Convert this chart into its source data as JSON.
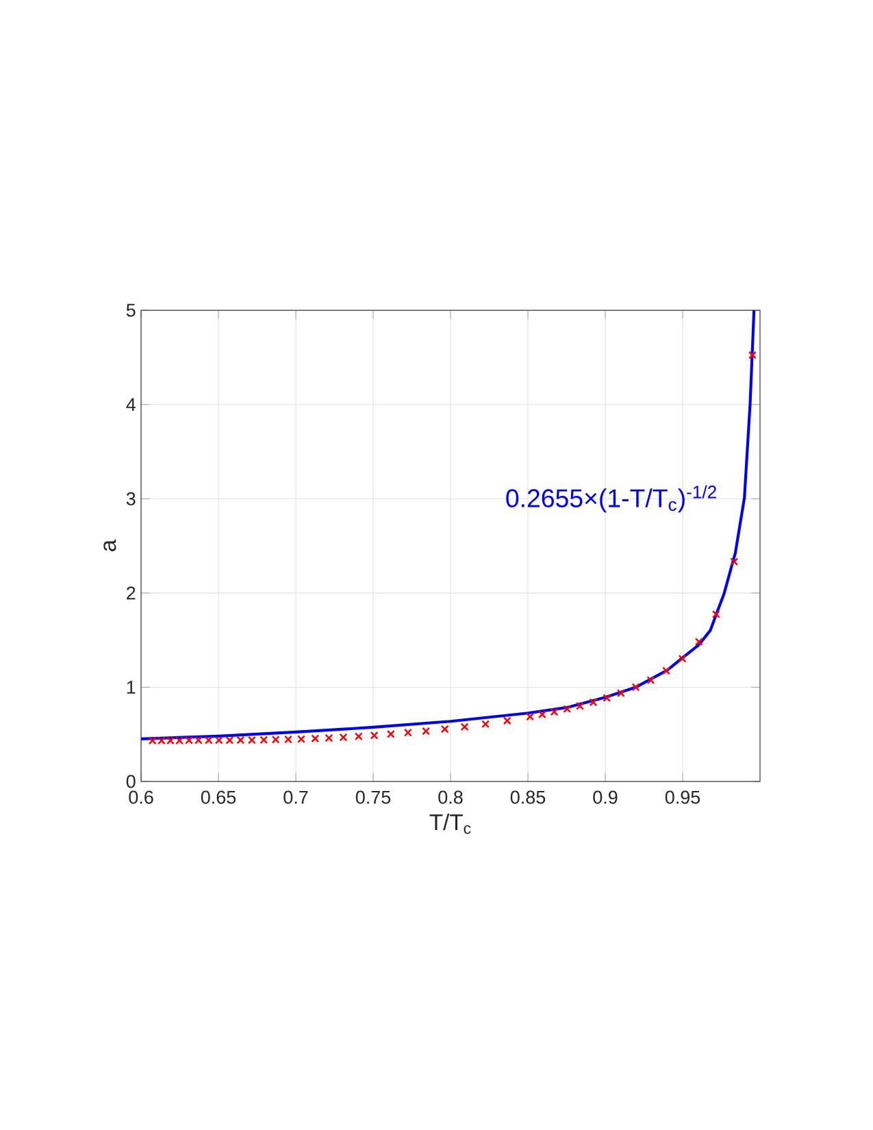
{
  "chart_data": {
    "type": "scatter",
    "xlabel": "T/T$_{c}$",
    "ylabel": "a",
    "xlim": [
      0.6,
      1.0
    ],
    "ylim": [
      0,
      5
    ],
    "xticks": [
      0.6,
      0.65,
      0.7,
      0.75,
      0.8,
      0.85,
      0.9,
      0.95
    ],
    "yticks": [
      0,
      1,
      2,
      3,
      4,
      5
    ],
    "grid": true,
    "annotations": [
      "0.2655×(1-T/T$_{c}$)$^{-1/2}$"
    ],
    "series": [
      {
        "color": "#ff0000",
        "marker": "cross",
        "x": [
          0.6074,
          0.6132,
          0.619,
          0.6248,
          0.631,
          0.6371,
          0.6437,
          0.6503,
          0.6572,
          0.6643,
          0.6716,
          0.6793,
          0.687,
          0.6951,
          0.7035,
          0.7125,
          0.7214,
          0.7307,
          0.7406,
          0.7507,
          0.7614,
          0.7725,
          0.7841,
          0.7963,
          0.8091,
          0.8226,
          0.8366,
          0.8514,
          0.8592,
          0.867,
          0.8753,
          0.8836,
          0.8922,
          0.901,
          0.9101,
          0.9197,
          0.9294,
          0.9394,
          0.9498,
          0.9605,
          0.9716,
          0.9833,
          0.9951
        ],
        "values": [
          0.434,
          0.434,
          0.434,
          0.434,
          0.437,
          0.437,
          0.437,
          0.437,
          0.437,
          0.439,
          0.439,
          0.441,
          0.444,
          0.446,
          0.449,
          0.456,
          0.461,
          0.468,
          0.478,
          0.488,
          0.503,
          0.519,
          0.534,
          0.556,
          0.58,
          0.609,
          0.645,
          0.687,
          0.711,
          0.738,
          0.769,
          0.801,
          0.84,
          0.886,
          0.937,
          1.0,
          1.075,
          1.175,
          1.303,
          1.483,
          1.774,
          2.333,
          4.525
        ]
      },
      {
        "type": "line",
        "color": "#0000ff",
        "marker": "none",
        "x": [
          0.6,
          0.65,
          0.7,
          0.75,
          0.8,
          0.85,
          0.875,
          0.9,
          0.92,
          0.94,
          0.95,
          0.9605,
          0.9679,
          0.9723,
          0.9767,
          0.9841,
          0.9899,
          0.9936,
          0.9961
        ],
        "values": [
          0.452,
          0.481,
          0.524,
          0.575,
          0.638,
          0.725,
          0.784,
          0.893,
          1.002,
          1.18,
          1.313,
          1.45,
          1.604,
          1.799,
          1.99,
          2.43,
          3.01,
          4.01,
          5.0
        ]
      }
    ]
  }
}
